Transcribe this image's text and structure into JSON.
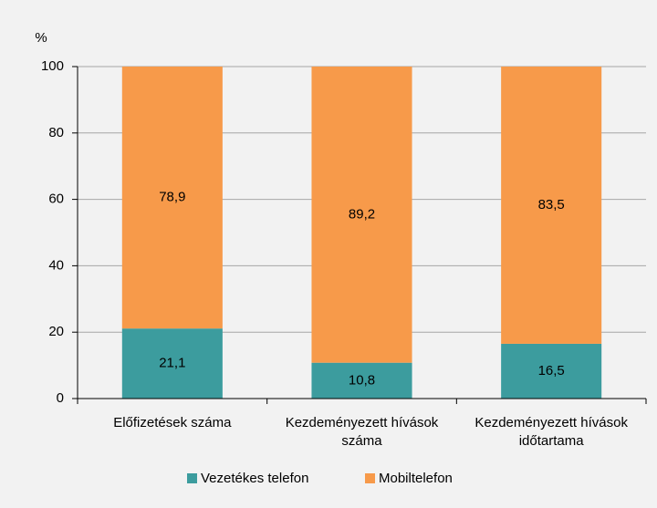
{
  "chart_data": {
    "type": "stacked_bar",
    "y_label": "%",
    "categories": [
      "Előfizetések száma",
      "Kezdeményezett hívások száma",
      "Kezdeményezett hívások időtartama"
    ],
    "series": [
      {
        "name": "Vezetékes telefon",
        "color": "#3c9c9e",
        "values": [
          21.1,
          10.8,
          16.5
        ],
        "value_labels": [
          "21,1",
          "10,8",
          "16,5"
        ]
      },
      {
        "name": "Mobiltelefon",
        "color": "#f79a4a",
        "values": [
          78.9,
          89.2,
          83.5
        ],
        "value_labels": [
          "78,9",
          "89,2",
          "83,5"
        ]
      }
    ],
    "ylim": [
      0,
      100
    ],
    "yticks": [
      0,
      20,
      40,
      60,
      80,
      100
    ],
    "grid": true,
    "legend": "bottom"
  }
}
